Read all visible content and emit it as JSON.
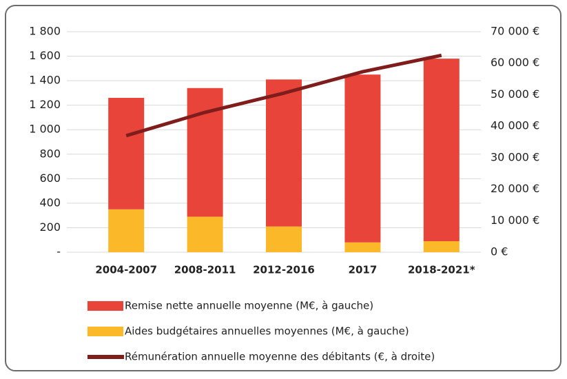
{
  "chart_data": {
    "type": "bar",
    "stacked": true,
    "categories": [
      "2004-2007",
      "2008-2011",
      "2012-2016",
      "2017",
      "2018-2021*"
    ],
    "series": [
      {
        "name": "Aides budgétaires annuelles moyennes (M€, à gauche)",
        "color": "#fbb829",
        "values": [
          350,
          290,
          210,
          80,
          90
        ]
      },
      {
        "name": "Remise nette annuelle moyenne (M€, à gauche)",
        "color": "#e8443a",
        "values": [
          910,
          1050,
          1200,
          1370,
          1490
        ]
      },
      {
        "name": "Rémunération annuelle moyenne des débitants (€, à droite)",
        "color": "#7f1d1d",
        "type": "line",
        "axis": "y2",
        "values": [
          37000,
          44400,
          50500,
          57300,
          62500
        ]
      }
    ],
    "ylim": [
      0,
      1800
    ],
    "yticks": [
      {
        "value": 0,
        "label": "-"
      },
      200,
      400,
      600,
      800,
      {
        "value": 1000,
        "label": "1 000"
      },
      {
        "value": 1200,
        "label": "1 200"
      },
      {
        "value": 1400,
        "label": "1 400"
      },
      {
        "value": 1600,
        "label": "1 600"
      },
      {
        "value": 1800,
        "label": "1 800"
      }
    ],
    "y2lim": [
      0,
      70000
    ],
    "y2ticks": [
      {
        "value": 0,
        "label": "0 €"
      },
      {
        "value": 10000,
        "label": "10 000 €"
      },
      {
        "value": 20000,
        "label": "20 000 €"
      },
      {
        "value": 30000,
        "label": "30 000 €"
      },
      {
        "value": 40000,
        "label": "40 000 €"
      },
      {
        "value": 50000,
        "label": "50 000 €"
      },
      {
        "value": 60000,
        "label": "60 000 €"
      },
      {
        "value": 70000,
        "label": "70 000 €"
      }
    ],
    "grid": true
  }
}
